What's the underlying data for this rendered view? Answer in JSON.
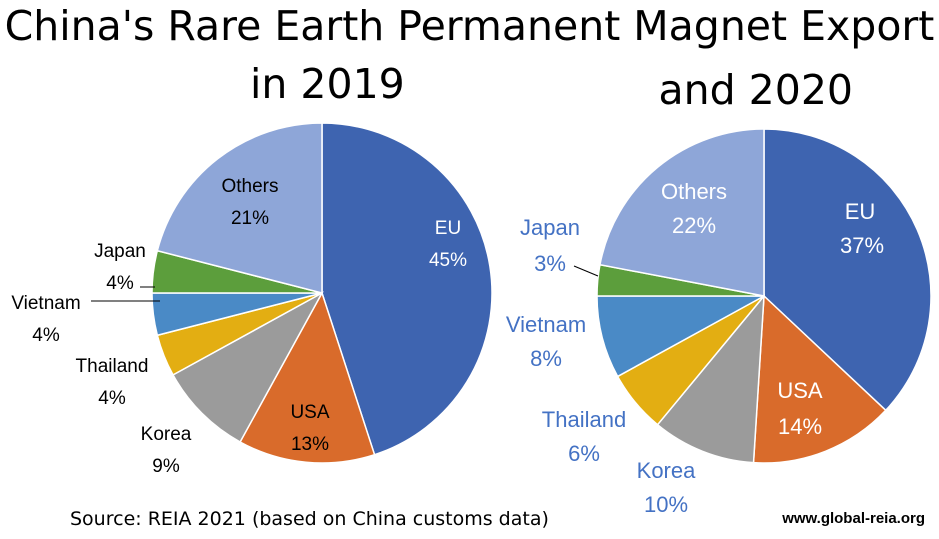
{
  "title": {
    "line1": "China's  Rare Earth Permanent Magnet Export",
    "line2": "in 2019",
    "line3": "and 2020"
  },
  "source": "Source: REIA 2021 (based on China customs data)",
  "website": "www.global-reia.org",
  "colors": {
    "EU": "#3E64B0",
    "USA": "#D96B2B",
    "Korea": "#9B9B9B",
    "Thailand": "#E3AE12",
    "Vietnam": "#4A8AC6",
    "Japan": "#5C9E3C",
    "Others": "#8EA6D8",
    "label2020": "#4472C4"
  },
  "chart_data": [
    {
      "type": "pie",
      "title": "2019",
      "categories": [
        "EU",
        "USA",
        "Korea",
        "Thailand",
        "Vietnam",
        "Japan",
        "Others"
      ],
      "values": [
        45,
        13,
        9,
        4,
        4,
        4,
        21
      ],
      "labels": [
        "45%",
        "13%",
        "9%",
        "4%",
        "4%",
        "4%",
        "21%"
      ]
    },
    {
      "type": "pie",
      "title": "2020",
      "categories": [
        "EU",
        "USA",
        "Korea",
        "Thailand",
        "Vietnam",
        "Japan",
        "Others"
      ],
      "values": [
        37,
        14,
        10,
        6,
        8,
        3,
        22
      ],
      "labels": [
        "37%",
        "14%",
        "10%",
        "6%",
        "8%",
        "3%",
        "22%"
      ]
    }
  ]
}
